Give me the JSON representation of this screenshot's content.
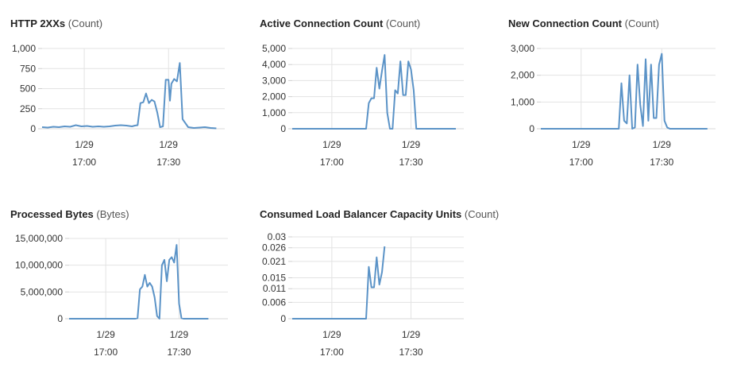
{
  "charts": [
    {
      "title": "HTTP 2XXs",
      "unit": "(Count)",
      "chart_data": {
        "type": "line",
        "ylim": [
          0,
          1000
        ],
        "yticks": [
          0,
          250,
          500,
          750,
          1000
        ],
        "ytick_labels": [
          "0",
          "250",
          "500",
          "750",
          "1,000"
        ],
        "xlim": [
          0,
          65
        ],
        "xticks": [
          15,
          45
        ],
        "xtick_labels": [
          [
            "1/29",
            "17:00"
          ],
          [
            "1/29",
            "17:30"
          ]
        ],
        "grid": true,
        "color": "#5b93c7",
        "series": [
          {
            "x": [
              0,
              2,
              4,
              6,
              8,
              10,
              12,
              14,
              16,
              18,
              20,
              22,
              24,
              26,
              28,
              30,
              31,
              32,
              33,
              34,
              35,
              36,
              37,
              38,
              39,
              40,
              41,
              42,
              43,
              44,
              45,
              45.5,
              46,
              47,
              48,
              49,
              50,
              52,
              54,
              56,
              58,
              60,
              62
            ],
            "values": [
              20,
              15,
              25,
              20,
              30,
              25,
              45,
              30,
              35,
              25,
              30,
              25,
              30,
              40,
              45,
              40,
              35,
              30,
              40,
              45,
              320,
              330,
              440,
              320,
              360,
              340,
              200,
              20,
              30,
              610,
              610,
              350,
              560,
              620,
              590,
              820,
              120,
              20,
              10,
              15,
              20,
              10,
              5
            ]
          }
        ]
      }
    },
    {
      "title": "Active Connection Count",
      "unit": "(Count)",
      "chart_data": {
        "type": "line",
        "ylim": [
          0,
          5000
        ],
        "yticks": [
          0,
          1000,
          2000,
          3000,
          4000,
          5000
        ],
        "ytick_labels": [
          "0",
          "1,000",
          "2,000",
          "3,000",
          "4,000",
          "5,000"
        ],
        "xlim": [
          0,
          65
        ],
        "xticks": [
          15,
          45
        ],
        "xtick_labels": [
          [
            "1/29",
            "17:00"
          ],
          [
            "1/29",
            "17:30"
          ]
        ],
        "grid": true,
        "color": "#5b93c7",
        "series": [
          {
            "x": [
              0,
              5,
              10,
              15,
              20,
              25,
              28,
              29,
              30,
              31,
              32,
              33,
              34,
              35,
              36,
              37,
              38,
              39,
              40,
              41,
              42,
              43,
              44,
              45,
              46,
              47,
              48,
              50,
              55,
              60,
              62
            ],
            "values": [
              0,
              0,
              0,
              0,
              0,
              0,
              0,
              1600,
              1900,
              1900,
              3800,
              2500,
              3600,
              4600,
              1000,
              0,
              0,
              2400,
              2200,
              4200,
              2100,
              2100,
              4200,
              3700,
              2400,
              0,
              0,
              0,
              0,
              0,
              0
            ]
          }
        ]
      }
    },
    {
      "title": "New Connection Count",
      "unit": "(Count)",
      "chart_data": {
        "type": "line",
        "ylim": [
          0,
          3000
        ],
        "yticks": [
          0,
          1000,
          2000,
          3000
        ],
        "ytick_labels": [
          "0",
          "1,000",
          "2,000",
          "3,000"
        ],
        "xlim": [
          0,
          65
        ],
        "xticks": [
          15,
          45
        ],
        "xtick_labels": [
          [
            "1/29",
            "17:00"
          ],
          [
            "1/29",
            "17:30"
          ]
        ],
        "grid": true,
        "color": "#5b93c7",
        "series": [
          {
            "x": [
              0,
              5,
              10,
              15,
              20,
              25,
              29,
              30,
              31,
              32,
              33,
              34,
              35,
              36,
              37,
              38,
              39,
              40,
              41,
              42,
              43,
              44,
              45,
              46,
              47,
              48,
              50,
              55,
              60,
              62
            ],
            "values": [
              0,
              0,
              0,
              0,
              0,
              0,
              0,
              1700,
              300,
              200,
              2000,
              0,
              50,
              2400,
              900,
              100,
              2600,
              300,
              2400,
              400,
              400,
              2400,
              2800,
              300,
              50,
              0,
              0,
              0,
              0,
              0
            ]
          }
        ]
      }
    },
    {
      "title": "Processed Bytes",
      "unit": "(Bytes)",
      "chart_data": {
        "type": "line",
        "ylim": [
          0,
          15000000
        ],
        "yticks": [
          0,
          5000000,
          10000000,
          15000000
        ],
        "ytick_labels": [
          "0",
          "5,000,000",
          "10,000,000",
          "15,000,000"
        ],
        "xlim": [
          0,
          65
        ],
        "xticks": [
          15,
          45
        ],
        "xtick_labels": [
          [
            "1/29",
            "17:00"
          ],
          [
            "1/29",
            "17:30"
          ]
        ],
        "grid": true,
        "color": "#5b93c7",
        "series": [
          {
            "x": [
              0,
              5,
              10,
              15,
              20,
              25,
              27,
              28,
              29,
              30,
              31,
              32,
              33,
              34,
              35,
              36,
              37,
              38,
              39,
              40,
              41,
              42,
              43,
              44,
              45,
              46,
              47,
              50,
              55,
              57
            ],
            "values": [
              0,
              0,
              0,
              0,
              0,
              0,
              0,
              100000,
              5500000,
              6000000,
              8200000,
              6000000,
              6700000,
              6000000,
              4000000,
              500000,
              0,
              10000000,
              11000000,
              7000000,
              11000000,
              11500000,
              10500000,
              13800000,
              2800000,
              100000,
              0,
              0,
              0,
              0
            ]
          }
        ]
      }
    },
    {
      "title": "Consumed Load Balancer Capacity Units",
      "unit": "(Count)",
      "chart_data": {
        "type": "line",
        "ylim": [
          0,
          0.03
        ],
        "yticks": [
          0,
          0.006,
          0.011,
          0.015,
          0.021,
          0.026,
          0.03
        ],
        "ytick_labels": [
          "0",
          "0.006",
          "0.011",
          "0.015",
          "0.021",
          "0.026",
          "0.03"
        ],
        "xlim": [
          0,
          65
        ],
        "xticks": [
          15,
          45
        ],
        "xtick_labels": [
          [
            "1/29",
            "17:00"
          ],
          [
            "1/29",
            "17:30"
          ]
        ],
        "grid": true,
        "color": "#5b93c7",
        "series": [
          {
            "x": [
              0,
              5,
              10,
              15,
              20,
              25,
              28,
              29,
              30,
              31,
              32,
              33,
              34,
              35
            ],
            "values": [
              0,
              0,
              0,
              0,
              0,
              0,
              0,
              0.019,
              0.0115,
              0.0115,
              0.0225,
              0.0125,
              0.017,
              0.0265
            ]
          }
        ]
      }
    }
  ]
}
